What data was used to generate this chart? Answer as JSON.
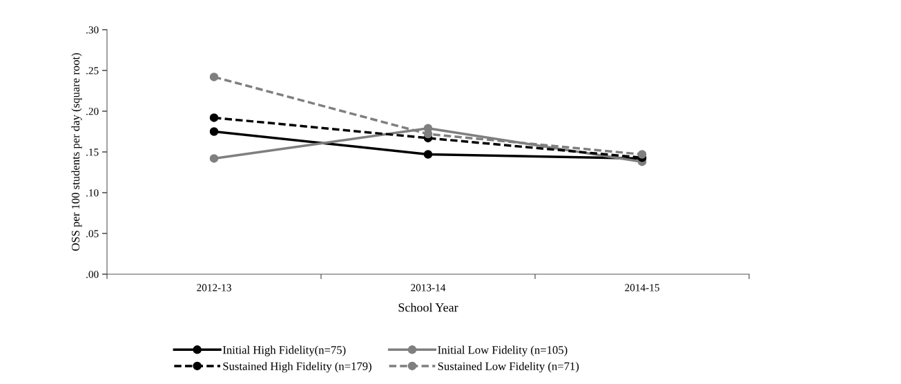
{
  "chart_data": {
    "type": "line",
    "xlabel": "School Year",
    "ylabel": "OSS per 100 students per day (square root)",
    "categories": [
      "2012-13",
      "2013-14",
      "2014-15"
    ],
    "series": [
      {
        "name": "Initial High Fidelity(n=75)",
        "color": "#000000",
        "line_style": "solid",
        "values": [
          0.175,
          0.147,
          0.142
        ]
      },
      {
        "name": "Initial Low Fidelity (n=105)",
        "color": "#7f7f7f",
        "line_style": "solid",
        "values": [
          0.142,
          0.179,
          0.138
        ]
      },
      {
        "name": "Sustained High Fidelity (n=179)",
        "color": "#000000",
        "line_style": "dashed",
        "values": [
          0.192,
          0.167,
          0.143
        ]
      },
      {
        "name": "Sustained Low Fidelity (n=71)",
        "color": "#7f7f7f",
        "line_style": "dashed",
        "values": [
          0.242,
          0.172,
          0.147
        ]
      }
    ],
    "ylim": [
      0,
      0.3
    ],
    "yticks": [
      {
        "value": 0,
        "label": ".00"
      },
      {
        "value": 0.05,
        "label": ".05"
      },
      {
        "value": 0.1,
        "label": ".10"
      },
      {
        "value": 0.15,
        "label": ".15"
      },
      {
        "value": 0.2,
        "label": ".20"
      },
      {
        "value": 0.25,
        "label": ".25"
      },
      {
        "value": 0.3,
        "label": ".30"
      }
    ],
    "marker": "circle",
    "grid": false,
    "legend": "bottom"
  }
}
